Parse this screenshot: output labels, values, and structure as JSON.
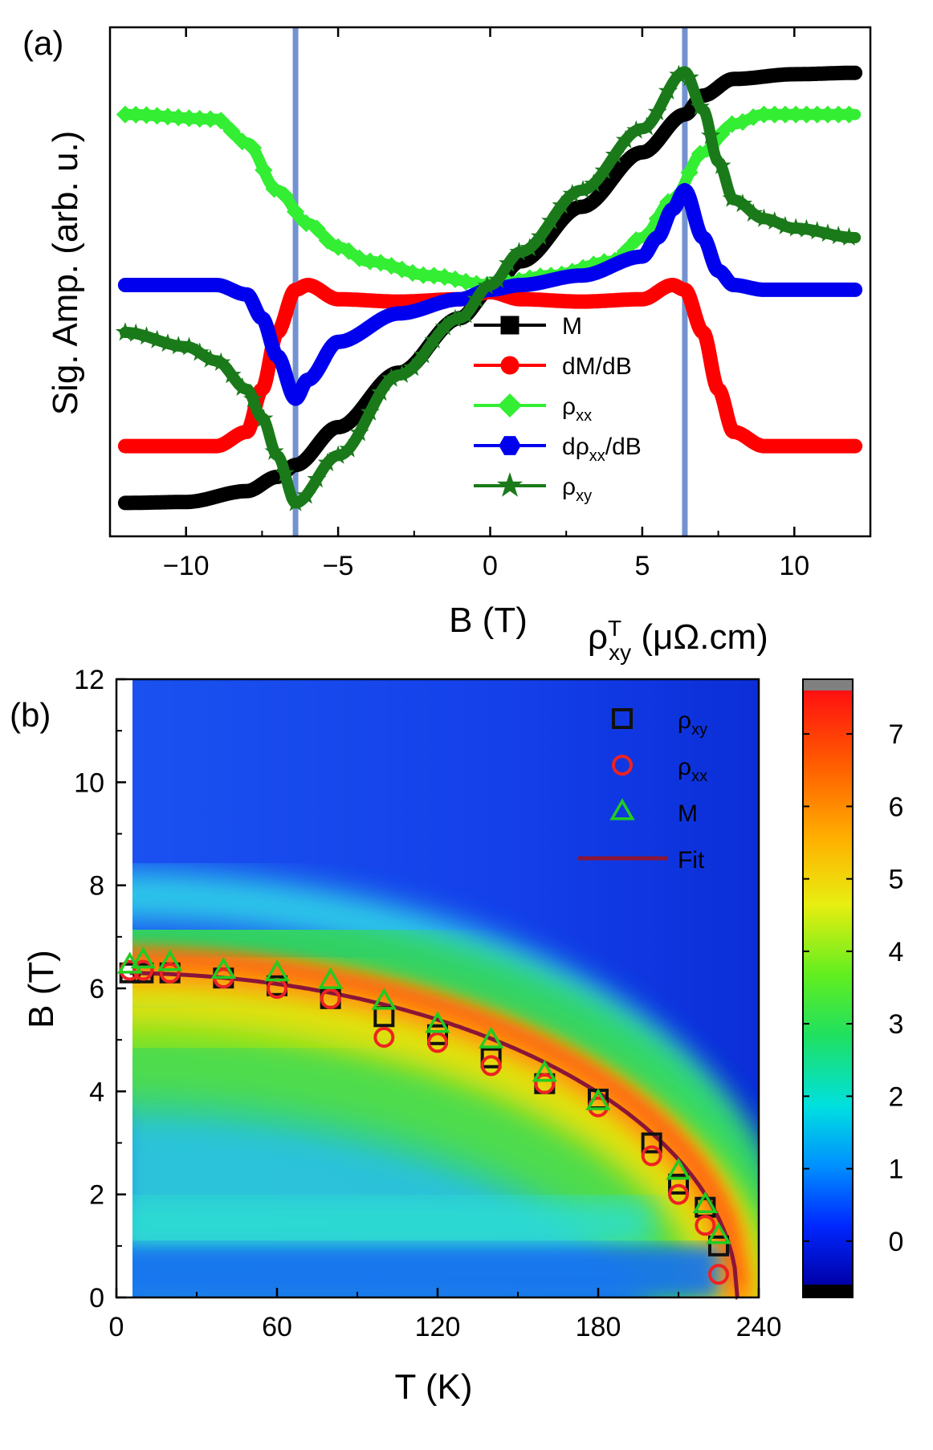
{
  "chart_data": [
    {
      "panel": "(a)",
      "type": "line",
      "xlabel": "B (T)",
      "ylabel": "Sig. Amp. (arb. u.)",
      "xlim": [
        -12.5,
        12.5
      ],
      "ylim": [
        0,
        1
      ],
      "xticks": [
        -10,
        -5,
        0,
        5,
        10
      ],
      "x_tick_labels": [
        "−10",
        "−5",
        "0",
        "5",
        "10"
      ],
      "vertical_lines": [
        -6.4,
        6.4
      ],
      "vertical_line_color": "#5b7fc8",
      "series": [
        {
          "name": "M",
          "label_main": "M",
          "label_sub": "",
          "label_suffix": "",
          "label_prefix": "",
          "color": "#000000",
          "marker": "square",
          "x": [
            -12,
            -10,
            -8,
            -7,
            -6.4,
            -5,
            -3,
            -1,
            0,
            1,
            3,
            5,
            6.4,
            7,
            8,
            10,
            12
          ],
          "y": [
            0.04,
            0.042,
            0.065,
            0.095,
            0.12,
            0.2,
            0.315,
            0.43,
            0.49,
            0.55,
            0.665,
            0.78,
            0.86,
            0.9,
            0.935,
            0.945,
            0.948
          ]
        },
        {
          "name": "dM/dB",
          "label_main": "dM/dB",
          "label_sub": "",
          "label_suffix": "",
          "label_prefix": "",
          "color": "#ff0000",
          "marker": "circle",
          "x": [
            -12,
            -9,
            -8,
            -7.5,
            -7,
            -6.4,
            -6,
            -5,
            -3,
            -1,
            0,
            1,
            3,
            5,
            6,
            6.4,
            7,
            7.5,
            8,
            9,
            12
          ],
          "y": [
            0.16,
            0.16,
            0.19,
            0.28,
            0.4,
            0.49,
            0.5,
            0.47,
            0.465,
            0.47,
            0.485,
            0.47,
            0.465,
            0.47,
            0.5,
            0.49,
            0.4,
            0.28,
            0.19,
            0.16,
            0.16
          ]
        },
        {
          "name": "ρxx",
          "label_main": "ρ",
          "label_sub": "xx",
          "label_suffix": "",
          "label_prefix": "",
          "color": "#33ee33",
          "marker": "diamond",
          "x": [
            -12,
            -9,
            -8,
            -7,
            -6,
            -5,
            -4,
            -2,
            0,
            2,
            4,
            5,
            6,
            7,
            8,
            9,
            12
          ],
          "y": [
            0.86,
            0.85,
            0.8,
            0.7,
            0.63,
            0.58,
            0.55,
            0.52,
            0.5,
            0.52,
            0.55,
            0.6,
            0.68,
            0.78,
            0.84,
            0.86,
            0.86
          ]
        },
        {
          "name": "dρxx/dB",
          "label_main": "ρ",
          "label_sub": "xx",
          "label_suffix": "/dB",
          "label_prefix": "d",
          "color": "#0000ee",
          "marker": "hexagon",
          "x": [
            -12,
            -9,
            -8,
            -7.5,
            -7,
            -6.4,
            -6,
            -5,
            -3,
            -1,
            0,
            1,
            3,
            5,
            5.5,
            6,
            6.4,
            7,
            7.5,
            8,
            9,
            12
          ],
          "y": [
            0.5,
            0.5,
            0.48,
            0.43,
            0.35,
            0.26,
            0.3,
            0.38,
            0.44,
            0.47,
            0.49,
            0.5,
            0.52,
            0.56,
            0.6,
            0.66,
            0.7,
            0.6,
            0.53,
            0.5,
            0.49,
            0.49
          ]
        },
        {
          "name": "ρxy",
          "label_main": "ρ",
          "label_sub": "xy",
          "label_suffix": "",
          "label_prefix": "",
          "color": "#1a7a1a",
          "marker": "star",
          "x": [
            -12,
            -10,
            -9,
            -8,
            -7.5,
            -7,
            -6.4,
            -5,
            -3,
            -1,
            0,
            1,
            3,
            5,
            6.4,
            7,
            7.5,
            8,
            9,
            10,
            12
          ],
          "y": [
            0.4,
            0.37,
            0.34,
            0.28,
            0.22,
            0.14,
            0.04,
            0.14,
            0.31,
            0.43,
            0.5,
            0.57,
            0.7,
            0.83,
            0.95,
            0.87,
            0.76,
            0.68,
            0.64,
            0.62,
            0.6
          ]
        }
      ]
    },
    {
      "panel": "(b)",
      "type": "heatmap",
      "xlabel": "T (K)",
      "ylabel": "B (T)",
      "xlim": [
        0,
        240
      ],
      "ylim": [
        0,
        12
      ],
      "xticks": [
        0,
        60,
        120,
        180,
        240
      ],
      "yticks": [
        0,
        2,
        4,
        6,
        8,
        10,
        12
      ],
      "colorbar_title_main": "ρ",
      "colorbar_title_sup": "T",
      "colorbar_title_sub": "xy",
      "colorbar_title_unit": " (μΩ.cm)",
      "colorbar_range": [
        -0.6,
        7.6
      ],
      "colorbar_ticks": [
        0,
        1,
        2,
        3,
        4,
        5,
        6,
        7
      ],
      "series": [
        {
          "name": "ρxy",
          "label_main": "ρ",
          "label_sub": "xy",
          "color": "#111111",
          "marker": "open-square",
          "T": [
            5,
            10,
            20,
            40,
            60,
            80,
            100,
            120,
            140,
            160,
            180,
            200,
            210,
            220,
            225
          ],
          "B": [
            6.3,
            6.3,
            6.3,
            6.2,
            6.05,
            5.8,
            5.45,
            5.1,
            4.65,
            4.15,
            3.85,
            3.0,
            2.2,
            1.75,
            1.0
          ]
        },
        {
          "name": "ρxx",
          "label_main": "ρ",
          "label_sub": "xx",
          "color": "#ee2222",
          "marker": "open-circle",
          "T": [
            5,
            10,
            20,
            40,
            60,
            80,
            100,
            120,
            140,
            160,
            180,
            200,
            210,
            220,
            225
          ],
          "B": [
            6.35,
            6.35,
            6.3,
            6.2,
            6.0,
            5.8,
            5.05,
            4.95,
            4.5,
            4.15,
            3.7,
            2.75,
            2.0,
            1.4,
            0.45
          ]
        },
        {
          "name": "M",
          "label_main": "M",
          "label_sub": "",
          "color": "#22cc22",
          "marker": "open-triangle",
          "T": [
            5,
            10,
            20,
            40,
            60,
            80,
            100,
            120,
            140,
            160,
            180,
            210,
            220,
            225
          ],
          "B": [
            6.45,
            6.55,
            6.5,
            6.35,
            6.3,
            6.15,
            5.75,
            5.3,
            5.0,
            4.35,
            3.8,
            2.45,
            1.8,
            1.2
          ]
        },
        {
          "name": "Fit",
          "label_main": "Fit",
          "label_sub": "",
          "color": "#8a1538",
          "marker": "line",
          "Tc": 232,
          "B0": 6.3
        }
      ]
    }
  ]
}
